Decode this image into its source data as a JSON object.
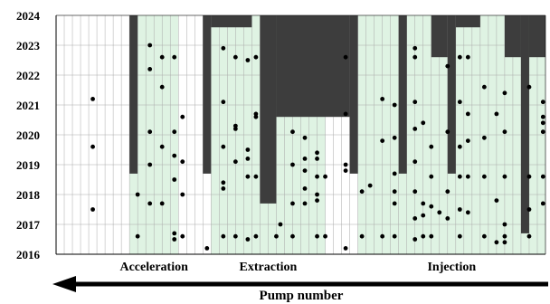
{
  "chart_data": {
    "type": "scatter",
    "x_count": 60,
    "ylim": [
      2016,
      2024
    ],
    "yticks": [
      "2016",
      "2017",
      "2018",
      "2019",
      "2020",
      "2021",
      "2022",
      "2023",
      "2024"
    ],
    "xlabel": "Pump number",
    "groups": [
      {
        "name": "Acceleration",
        "start": 9,
        "end": 14
      },
      {
        "name": "Extraction",
        "start": 19,
        "end": 32
      },
      {
        "name": "Injection",
        "start": 37,
        "end": 59
      }
    ],
    "shaded_spans": [
      {
        "start": 9,
        "end": 14,
        "from": 2016,
        "to": 2024
      },
      {
        "start": 19,
        "end": 32,
        "from": 2016,
        "to": 2024
      },
      {
        "start": 37,
        "end": 59,
        "from": 2016,
        "to": 2024
      }
    ],
    "dark_bars": [
      {
        "start": 9,
        "end": 9,
        "from": 2018.7,
        "to": 2024
      },
      {
        "start": 18,
        "end": 18,
        "from": 2018.7,
        "to": 2024
      },
      {
        "start": 19,
        "end": 23,
        "from": 2023.6,
        "to": 2024
      },
      {
        "start": 25,
        "end": 26,
        "from": 2017.7,
        "to": 2024
      },
      {
        "start": 27,
        "end": 35,
        "from": 2020.6,
        "to": 2024
      },
      {
        "start": 36,
        "end": 36,
        "from": 2018.7,
        "to": 2024
      },
      {
        "start": 42,
        "end": 42,
        "from": 2018.7,
        "to": 2024
      },
      {
        "start": 46,
        "end": 47,
        "from": 2022.6,
        "to": 2024
      },
      {
        "start": 48,
        "end": 48,
        "from": 2018.7,
        "to": 2024
      },
      {
        "start": 49,
        "end": 51,
        "from": 2023.6,
        "to": 2024
      },
      {
        "start": 55,
        "end": 56,
        "from": 2022.6,
        "to": 2024
      },
      {
        "start": 57,
        "end": 57,
        "from": 2016.7,
        "to": 2024
      },
      {
        "start": 58,
        "end": 60,
        "from": 2022.6,
        "to": 2024
      }
    ],
    "points": [
      [
        4,
        2021.2
      ],
      [
        4,
        2019.6
      ],
      [
        4,
        2017.5
      ],
      [
        9.5,
        2016.6
      ],
      [
        9.5,
        2018.0
      ],
      [
        11,
        2023.0
      ],
      [
        11,
        2022.2
      ],
      [
        11,
        2020.1
      ],
      [
        11,
        2019.0
      ],
      [
        11,
        2017.7
      ],
      [
        12.5,
        2022.6
      ],
      [
        12.5,
        2021.6
      ],
      [
        12.5,
        2019.6
      ],
      [
        12.5,
        2017.7
      ],
      [
        14,
        2022.6
      ],
      [
        14,
        2020.1
      ],
      [
        14,
        2019.3
      ],
      [
        14,
        2018.5
      ],
      [
        14,
        2016.7
      ],
      [
        14,
        2016.5
      ],
      [
        15,
        2020.6
      ],
      [
        15,
        2019.1
      ],
      [
        15,
        2018.0
      ],
      [
        15,
        2016.6
      ],
      [
        18,
        2016.2
      ],
      [
        20,
        2022.9
      ],
      [
        20,
        2021.1
      ],
      [
        20,
        2019.6
      ],
      [
        20,
        2018.4
      ],
      [
        20,
        2018.2
      ],
      [
        20,
        2016.6
      ],
      [
        21.5,
        2022.6
      ],
      [
        21.5,
        2020.3
      ],
      [
        21.5,
        2020.2
      ],
      [
        21.5,
        2019.1
      ],
      [
        21.5,
        2016.6
      ],
      [
        23,
        2022.5
      ],
      [
        23,
        2019.5
      ],
      [
        23,
        2019.2
      ],
      [
        23,
        2018.6
      ],
      [
        23,
        2016.5
      ],
      [
        24,
        2022.6
      ],
      [
        24,
        2020.7
      ],
      [
        24,
        2020.6
      ],
      [
        24,
        2018.6
      ],
      [
        24,
        2016.6
      ],
      [
        26.5,
        2016.6
      ],
      [
        27,
        2017.0
      ],
      [
        28.5,
        2020.1
      ],
      [
        28.5,
        2019.0
      ],
      [
        28.5,
        2017.7
      ],
      [
        28.5,
        2016.6
      ],
      [
        30,
        2019.9
      ],
      [
        30,
        2019.2
      ],
      [
        30,
        2018.8
      ],
      [
        30,
        2018.2
      ],
      [
        30,
        2017.7
      ],
      [
        31.5,
        2019.4
      ],
      [
        31.5,
        2019.2
      ],
      [
        31.5,
        2018.6
      ],
      [
        31.5,
        2018.0
      ],
      [
        31.5,
        2017.8
      ],
      [
        31.5,
        2016.6
      ],
      [
        32.5,
        2018.6
      ],
      [
        32.5,
        2016.6
      ],
      [
        35,
        2022.6
      ],
      [
        35,
        2020.7
      ],
      [
        35,
        2019.0
      ],
      [
        35,
        2018.8
      ],
      [
        35,
        2016.2
      ],
      [
        37,
        2018.1
      ],
      [
        37,
        2016.6
      ],
      [
        38,
        2018.3
      ],
      [
        39.5,
        2021.2
      ],
      [
        39.5,
        2019.8
      ],
      [
        39.5,
        2016.6
      ],
      [
        41,
        2021.0
      ],
      [
        41,
        2019.9
      ],
      [
        41,
        2018.7
      ],
      [
        41,
        2018.1
      ],
      [
        41,
        2017.7
      ],
      [
        41,
        2016.6
      ],
      [
        43.5,
        2022.9
      ],
      [
        43.5,
        2022.6
      ],
      [
        43.5,
        2021.1
      ],
      [
        43.5,
        2020.2
      ],
      [
        43.5,
        2019.1
      ],
      [
        43.5,
        2018.1
      ],
      [
        43.5,
        2017.2
      ],
      [
        43.5,
        2016.5
      ],
      [
        44.5,
        2020.4
      ],
      [
        44.5,
        2017.7
      ],
      [
        44.5,
        2017.3
      ],
      [
        44.5,
        2016.6
      ],
      [
        45.5,
        2019.6
      ],
      [
        45.5,
        2018.6
      ],
      [
        45.5,
        2017.6
      ],
      [
        45.5,
        2016.6
      ],
      [
        46.5,
        2017.4
      ],
      [
        47.5,
        2022.3
      ],
      [
        47.5,
        2020.1
      ],
      [
        47.5,
        2018.1
      ],
      [
        47.5,
        2017.2
      ],
      [
        49,
        2022.6
      ],
      [
        49,
        2021.1
      ],
      [
        49,
        2019.6
      ],
      [
        49,
        2018.6
      ],
      [
        49,
        2017.5
      ],
      [
        49,
        2016.6
      ],
      [
        50,
        2022.6
      ],
      [
        50,
        2020.7
      ],
      [
        50,
        2019.8
      ],
      [
        50,
        2018.6
      ],
      [
        50,
        2017.4
      ],
      [
        52,
        2021.6
      ],
      [
        52,
        2019.9
      ],
      [
        52,
        2018.6
      ],
      [
        52,
        2016.6
      ],
      [
        53.5,
        2020.7
      ],
      [
        53.5,
        2017.8
      ],
      [
        53.5,
        2016.4
      ],
      [
        54.5,
        2021.4
      ],
      [
        54.5,
        2020.1
      ],
      [
        54.5,
        2018.6
      ],
      [
        54.5,
        2017.0
      ],
      [
        54.5,
        2016.4
      ],
      [
        54.5,
        2016.6
      ],
      [
        57.5,
        2021.6
      ],
      [
        57.5,
        2018.6
      ],
      [
        57.5,
        2017.5
      ],
      [
        57.5,
        2016.6
      ],
      [
        59.2,
        2021.1
      ],
      [
        59.2,
        2020.6
      ],
      [
        59.2,
        2020.4
      ],
      [
        59.2,
        2020.1
      ],
      [
        59.2,
        2018.6
      ],
      [
        59.2,
        2017.7
      ]
    ]
  },
  "colors": {
    "shade": "#dff3e3",
    "bar": "#3d3d3d",
    "grid": "#aaaaaa",
    "point": "#000000"
  }
}
